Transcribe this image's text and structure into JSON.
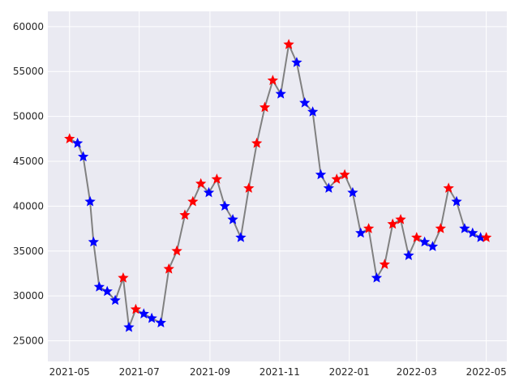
{
  "chart_data": {
    "type": "line",
    "title": "",
    "xlabel": "",
    "ylabel": "",
    "ylim": [
      22700,
      61700
    ],
    "xlim": [
      "2021-04-12",
      "2022-05-19"
    ],
    "grid": true,
    "legend": "none",
    "x_ticks": [
      "2021-05",
      "2021-07",
      "2021-09",
      "2021-11",
      "2022-01",
      "2022-03",
      "2022-05"
    ],
    "y_ticks": [
      25000,
      30000,
      35000,
      40000,
      45000,
      50000,
      55000,
      60000
    ],
    "colors": {
      "background": "#eaeaf2",
      "grid": "#ffffff",
      "line": "#808080",
      "up_marker": "#ff0000",
      "down_marker": "#0000ff"
    },
    "marker": "star",
    "series": [
      {
        "values": [
          [
            "2021-05-01",
            47500
          ],
          [
            "2021-05-08",
            47000
          ],
          [
            "2021-05-13",
            45500
          ],
          [
            "2021-05-19",
            40500
          ],
          [
            "2021-05-22",
            36000
          ],
          [
            "2021-05-27",
            31000
          ],
          [
            "2021-06-03",
            30500
          ],
          [
            "2021-06-10",
            29500
          ],
          [
            "2021-06-17",
            32000
          ],
          [
            "2021-06-22",
            26500
          ],
          [
            "2021-06-28",
            28500
          ],
          [
            "2021-07-05",
            28000
          ],
          [
            "2021-07-12",
            27500
          ],
          [
            "2021-07-20",
            27000
          ],
          [
            "2021-07-27",
            33000
          ],
          [
            "2021-08-03",
            35000
          ],
          [
            "2021-08-10",
            39000
          ],
          [
            "2021-08-17",
            40500
          ],
          [
            "2021-08-24",
            42500
          ],
          [
            "2021-08-31",
            41500
          ],
          [
            "2021-09-07",
            43000
          ],
          [
            "2021-09-14",
            40000
          ],
          [
            "2021-09-21",
            38500
          ],
          [
            "2021-09-28",
            36500
          ],
          [
            "2021-10-05",
            42000
          ],
          [
            "2021-10-12",
            47000
          ],
          [
            "2021-10-19",
            51000
          ],
          [
            "2021-10-26",
            54000
          ],
          [
            "2021-11-02",
            52500
          ],
          [
            "2021-11-09",
            58000
          ],
          [
            "2021-11-16",
            56000
          ],
          [
            "2021-11-23",
            51500
          ],
          [
            "2021-11-30",
            50500
          ],
          [
            "2021-12-07",
            43500
          ],
          [
            "2021-12-14",
            42000
          ],
          [
            "2021-12-21",
            43000
          ],
          [
            "2021-12-28",
            43500
          ],
          [
            "2022-01-04",
            41500
          ],
          [
            "2022-01-11",
            37000
          ],
          [
            "2022-01-18",
            37500
          ],
          [
            "2022-01-25",
            32000
          ],
          [
            "2022-02-01",
            33500
          ],
          [
            "2022-02-08",
            38000
          ],
          [
            "2022-02-15",
            38500
          ],
          [
            "2022-02-22",
            34500
          ],
          [
            "2022-03-01",
            36500
          ],
          [
            "2022-03-08",
            36000
          ],
          [
            "2022-03-15",
            35500
          ],
          [
            "2022-03-22",
            37500
          ],
          [
            "2022-03-29",
            42000
          ],
          [
            "2022-04-05",
            40500
          ],
          [
            "2022-04-12",
            37500
          ],
          [
            "2022-04-19",
            37000
          ],
          [
            "2022-04-26",
            36500
          ],
          [
            "2022-05-01",
            36500
          ]
        ]
      }
    ]
  }
}
